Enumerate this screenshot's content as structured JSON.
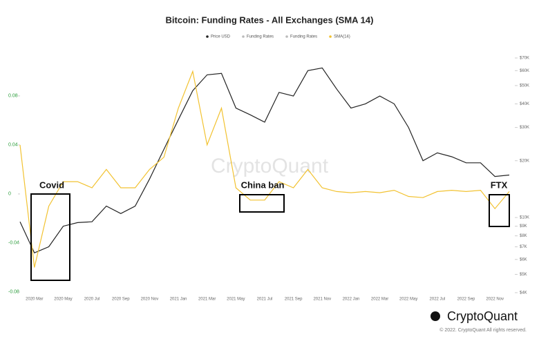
{
  "chart_data": {
    "type": "line",
    "title": "Bitcoin: Funding Rates - All Exchanges (SMA 14)",
    "x": [
      null,
      "2020 Mar",
      null,
      "2020 May",
      null,
      "2020 Jul",
      null,
      "2020 Sep",
      null,
      "2020 Nov",
      null,
      "2021 Jan",
      null,
      "2021 Mar",
      null,
      "2021 May",
      null,
      "2021 Jul",
      null,
      "2021 Sep",
      null,
      "2021 Nov",
      null,
      "2022 Jan",
      null,
      "2022 Mar",
      null,
      "2022 May",
      null,
      "2022 Jul",
      null,
      "2022 Sep",
      null,
      "2022 Nov",
      null
    ],
    "series": [
      {
        "name": "Price USD",
        "color": "#222222",
        "axis": "y2",
        "values": [
          9500,
          6500,
          7000,
          9000,
          9400,
          9500,
          11500,
          10500,
          11500,
          16000,
          23000,
          33000,
          47000,
          57000,
          58000,
          38000,
          35000,
          32000,
          46000,
          44000,
          60000,
          62000,
          48000,
          38000,
          40000,
          44000,
          40000,
          30000,
          20000,
          22000,
          21000,
          19500,
          19500,
          16500,
          16800
        ]
      },
      {
        "name": "SMA(14)",
        "color": "#f2c230",
        "values": [
          0.04,
          -0.06,
          -0.01,
          0.01,
          0.01,
          0.005,
          0.02,
          0.005,
          0.005,
          0.02,
          0.03,
          0.07,
          0.1,
          0.04,
          0.07,
          0.005,
          -0.005,
          -0.005,
          0.01,
          0.005,
          0.02,
          0.005,
          0.002,
          0.001,
          0.002,
          0.001,
          0.003,
          -0.002,
          -0.003,
          0.002,
          0.003,
          0.002,
          0.003,
          -0.012,
          0.002
        ]
      }
    ],
    "legend_extra": [
      {
        "name": "Funding Rates",
        "color": "#bbbbbb"
      },
      {
        "name": "Funding Rates",
        "color": "#bbbbbb"
      }
    ],
    "ylim": [
      -0.084,
      0.116
    ],
    "yticks": [
      0.08,
      0.04,
      0,
      -0.04,
      -0.08
    ],
    "y2lim": [
      3800,
      75500
    ],
    "y2log": true,
    "y2ticks": [
      {
        "value": 70000,
        "label": "$70K"
      },
      {
        "value": 60000,
        "label": "$60K"
      },
      {
        "value": 50000,
        "label": "$50K"
      },
      {
        "value": 40000,
        "label": "$40K"
      },
      {
        "value": 30000,
        "label": "$30K"
      },
      {
        "value": 20000,
        "label": "$20K"
      },
      {
        "value": 10000,
        "label": "$10K"
      },
      {
        "value": 9000,
        "label": "$9K"
      },
      {
        "value": 8000,
        "label": "$8K"
      },
      {
        "value": 7000,
        "label": "$7K"
      },
      {
        "value": 6000,
        "label": "$6K"
      },
      {
        "value": 5000,
        "label": "$5K"
      },
      {
        "value": 4000,
        "label": "$4K"
      }
    ],
    "annotations": [
      "Covid",
      "China ban",
      "FTX"
    ],
    "watermark": "CryptoQuant",
    "brand": "CryptoQuant",
    "copyright": "© 2022. CryptoQuant All rights reserved."
  }
}
